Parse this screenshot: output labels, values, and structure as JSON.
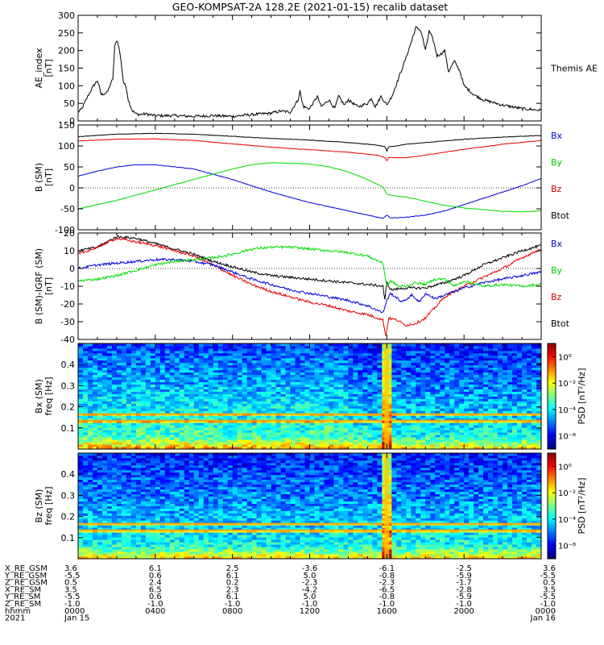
{
  "figure": {
    "title": "GEO-KOMPSAT-2A 128.2E (2021-01-15) recalib dataset"
  },
  "chart_data": [
    {
      "type": "line",
      "panel": "ae",
      "ylabel_lines": [
        "AE_index",
        "[nT]"
      ],
      "ylim": [
        0,
        300
      ],
      "yticks": [
        0,
        50,
        100,
        150,
        200,
        250,
        300
      ],
      "xlim_hours": [
        0,
        24
      ],
      "legend": [
        {
          "label": "Themis AE",
          "color": "#000000"
        }
      ],
      "series": [
        {
          "color": "#000000",
          "x": [
            0,
            0.2,
            0.5,
            0.8,
            1.0,
            1.2,
            1.5,
            1.8,
            1.9,
            2.0,
            2.1,
            2.2,
            2.35,
            2.5,
            2.6,
            2.8,
            3.0,
            3.2,
            3.5,
            4,
            5,
            6,
            7,
            8,
            9,
            9.5,
            10,
            10.5,
            11,
            11.4,
            11.5,
            11.6,
            11.7,
            12,
            12.4,
            12.6,
            13,
            13.3,
            13.5,
            13.8,
            14,
            14.5,
            15,
            15.2,
            15.4,
            15.7,
            16,
            16.3,
            16.7,
            17,
            17.3,
            17.5,
            17.7,
            17.8,
            18.0,
            18.2,
            18.4,
            18.6,
            18.8,
            19,
            19.2,
            19.5,
            19.8,
            20,
            20.5,
            21,
            22,
            23,
            24
          ],
          "y": [
            25,
            35,
            70,
            100,
            115,
            75,
            80,
            120,
            210,
            230,
            215,
            180,
            110,
            95,
            60,
            30,
            20,
            18,
            20,
            15,
            15,
            13,
            15,
            13,
            18,
            20,
            22,
            28,
            25,
            60,
            85,
            55,
            40,
            35,
            70,
            40,
            60,
            35,
            70,
            45,
            60,
            40,
            50,
            65,
            40,
            70,
            45,
            75,
            135,
            180,
            230,
            265,
            260,
            250,
            200,
            255,
            230,
            185,
            190,
            200,
            140,
            170,
            140,
            100,
            75,
            60,
            45,
            35,
            30
          ]
        }
      ]
    },
    {
      "type": "line",
      "panel": "b_sm",
      "ylabel_lines": [
        "B (SM)",
        "[nT]"
      ],
      "ylim": [
        -100,
        150
      ],
      "yticks": [
        -100,
        -50,
        0,
        50,
        100,
        150
      ],
      "xlim_hours": [
        0,
        24
      ],
      "legend": [
        {
          "label": "Bx",
          "color": "#0000cc"
        },
        {
          "label": "By",
          "color": "#00cc00"
        },
        {
          "label": "Bz",
          "color": "#cc0000"
        },
        {
          "label": "Btot",
          "color": "#000000"
        }
      ],
      "series": [
        {
          "name": "Btot",
          "color": "#000000",
          "x": [
            0,
            2,
            4,
            6,
            8,
            10,
            12,
            14,
            15.5,
            15.9,
            16.0,
            16.1,
            16.5,
            17,
            18,
            20,
            22,
            24
          ],
          "y": [
            122,
            128,
            130,
            128,
            123,
            118,
            114,
            108,
            102,
            98,
            88,
            98,
            100,
            104,
            108,
            116,
            121,
            125
          ]
        },
        {
          "name": "Bz",
          "color": "#ee0000",
          "x": [
            0,
            2,
            4,
            6,
            8,
            10,
            12,
            14,
            15.5,
            15.9,
            16.0,
            16.1,
            16.5,
            17,
            18,
            20,
            22,
            24
          ],
          "y": [
            112,
            116,
            117,
            113,
            105,
            97,
            91,
            85,
            78,
            72,
            65,
            73,
            72,
            72,
            78,
            92,
            104,
            113
          ]
        },
        {
          "name": "Bx",
          "color": "#0000dd",
          "x": [
            0,
            1,
            2,
            3,
            4,
            6,
            8,
            10,
            12,
            14,
            15,
            15.8,
            16.0,
            16.2,
            17,
            18,
            19,
            20,
            21,
            22,
            23,
            24
          ],
          "y": [
            28,
            40,
            50,
            55,
            55,
            45,
            20,
            -10,
            -35,
            -55,
            -65,
            -73,
            -65,
            -72,
            -70,
            -65,
            -55,
            -40,
            -25,
            -10,
            5,
            22
          ]
        },
        {
          "name": "By",
          "color": "#00dd00",
          "x": [
            0,
            2,
            4,
            6,
            8,
            9,
            10,
            12,
            13,
            14,
            15,
            15.8,
            16.0,
            16.5,
            17,
            18,
            19,
            20,
            21,
            22,
            23,
            24
          ],
          "y": [
            -50,
            -30,
            -5,
            20,
            45,
            55,
            60,
            57,
            50,
            38,
            20,
            2,
            -15,
            -20,
            -22,
            -32,
            -42,
            -48,
            -52,
            -56,
            -57,
            -55
          ]
        }
      ]
    },
    {
      "type": "line",
      "panel": "b_minus_igrf",
      "ylabel_lines": [
        "B (SM)-IGRF (SM)",
        "[nT]"
      ],
      "ylim": [
        -40,
        20
      ],
      "yticks": [
        -40,
        -30,
        -20,
        -10,
        0,
        10,
        20
      ],
      "xlim_hours": [
        0,
        24
      ],
      "legend": [
        {
          "label": "Bx",
          "color": "#0000cc"
        },
        {
          "label": "By",
          "color": "#00cc00"
        },
        {
          "label": "Bz",
          "color": "#cc0000"
        },
        {
          "label": "Btot",
          "color": "#000000"
        }
      ],
      "series": [
        {
          "name": "Btot",
          "color": "#000000",
          "x": [
            0,
            1,
            2,
            3,
            4,
            5,
            6,
            7,
            8,
            9,
            10,
            11,
            12,
            13,
            14,
            15,
            15.8,
            15.9,
            16.0,
            16.2,
            17,
            18,
            19,
            20,
            21,
            22,
            23,
            24
          ],
          "y": [
            10,
            12,
            18,
            17,
            14,
            11,
            8,
            4,
            1,
            -2,
            -4,
            -5,
            -6,
            -7,
            -8,
            -9,
            -10,
            -18,
            -8,
            -12,
            -11,
            -11,
            -8,
            -4,
            2,
            6,
            10,
            13
          ]
        },
        {
          "name": "Bz",
          "color": "#ee0000",
          "x": [
            0,
            1,
            2,
            3,
            4,
            5,
            6,
            7,
            8,
            9,
            10,
            11,
            12,
            13,
            14,
            15,
            15.8,
            15.95,
            16.1,
            16.5,
            17,
            17.5,
            18,
            18.5,
            19,
            20,
            21,
            22,
            23,
            24
          ],
          "y": [
            8,
            12,
            17,
            15,
            13,
            10,
            7,
            2,
            -4,
            -9,
            -13,
            -16,
            -19,
            -21,
            -24,
            -26,
            -29,
            -38,
            -28,
            -29,
            -32,
            -31,
            -28,
            -22,
            -16,
            -10,
            -5,
            0,
            6,
            11
          ]
        },
        {
          "name": "Bx",
          "color": "#0000dd",
          "x": [
            0,
            1,
            2,
            3,
            4,
            5,
            6,
            7,
            8,
            9,
            10,
            11,
            12,
            13,
            14,
            15,
            15.8,
            16.0,
            16.2,
            16.8,
            17.3,
            17.7,
            18,
            18.5,
            19,
            20,
            21,
            22,
            23,
            24
          ],
          "y": [
            0,
            2,
            3,
            4,
            5,
            5,
            4,
            2,
            -2,
            -6,
            -9,
            -12,
            -14,
            -16,
            -18,
            -21,
            -25,
            -18,
            -14,
            -19,
            -15,
            -19,
            -14,
            -17,
            -15,
            -11,
            -8,
            -6,
            -4,
            -2
          ]
        },
        {
          "name": "By",
          "color": "#00dd00",
          "x": [
            0,
            1,
            2,
            3,
            4,
            5,
            6,
            7,
            8,
            9,
            10,
            11,
            12,
            13,
            14,
            15,
            15.8,
            16.0,
            16.2,
            16.6,
            17,
            17.5,
            18,
            18.5,
            19,
            19.5,
            20,
            21,
            22,
            23,
            24
          ],
          "y": [
            -7,
            -6,
            -4,
            -1,
            2,
            4,
            5,
            6,
            8,
            11,
            12,
            12,
            11,
            10,
            9,
            7,
            3,
            -10,
            -7,
            -10,
            -10,
            -8,
            -9,
            -6,
            -6,
            -10,
            -7,
            -10,
            -9,
            -10,
            -9
          ]
        }
      ]
    },
    {
      "type": "heatmap",
      "panel": "bx_spec",
      "ylabel_lines": [
        "Bx (SM)",
        "freq [Hz]"
      ],
      "ylim": [
        0,
        0.5
      ],
      "yticks": [
        0.1,
        0.2,
        0.3,
        0.4
      ],
      "xlim_hours": [
        0,
        24
      ],
      "colorbar": {
        "label": "PSD [nT²/Hz]",
        "tick_labels": [
          "10⁰",
          "10⁻²",
          "10⁻⁴",
          "10⁻⁶"
        ],
        "tick_exps": [
          0,
          -2,
          -4,
          -6
        ],
        "range_exp": [
          -7,
          1
        ]
      },
      "features": {
        "horizontal_lines_hz": [
          0.165,
          0.135
        ],
        "vertical_band_hours": 16.0
      }
    },
    {
      "type": "heatmap",
      "panel": "bz_spec",
      "ylabel_lines": [
        "Bz (SM)",
        "freq [Hz]"
      ],
      "ylim": [
        0,
        0.5
      ],
      "yticks": [
        0.1,
        0.2,
        0.3,
        0.4
      ],
      "xlim_hours": [
        0,
        24
      ],
      "colorbar": {
        "label": "PSD [nT²/Hz]",
        "tick_labels": [
          "10⁰",
          "10⁻²",
          "10⁻⁴",
          "10⁻⁶"
        ],
        "tick_exps": [
          0,
          -2,
          -4,
          -6
        ],
        "range_exp": [
          -7,
          1
        ]
      },
      "features": {
        "horizontal_lines_hz": [
          0.165,
          0.135
        ],
        "vertical_band_hours": 16.0
      }
    }
  ],
  "ephemeris": {
    "row_labels": [
      "X_RE_GSM",
      "Y_RE_GSM",
      "Z_RE_GSM",
      "X_RE_SM",
      "Y_RE_SM",
      "Z_RE_SM",
      "hhmm",
      "2021"
    ],
    "columns": [
      {
        "hour": 0,
        "values": [
          "3.6",
          "-5.5",
          "0.5",
          "3.5",
          "-5.5",
          "-1.0",
          "0000",
          "Jan 15"
        ]
      },
      {
        "hour": 4,
        "values": [
          "6.1",
          "0.6",
          "2.4",
          "6.5",
          "0.6",
          "-1.0",
          "0400",
          ""
        ]
      },
      {
        "hour": 8,
        "values": [
          "2.5",
          "6.1",
          "0.2",
          "2.3",
          "6.1",
          "-1.0",
          "0800",
          ""
        ]
      },
      {
        "hour": 12,
        "values": [
          "-3.6",
          "5.0",
          "-2.3",
          "-4.2",
          "5.0",
          "-1.0",
          "1200",
          ""
        ]
      },
      {
        "hour": 16,
        "values": [
          "-6.1",
          "-0.8",
          "-2.3",
          "-6.5",
          "-0.8",
          "-1.0",
          "1600",
          ""
        ]
      },
      {
        "hour": 20,
        "values": [
          "-2.5",
          "-5.9",
          "-1.7",
          "-2.8",
          "-5.9",
          "-1.0",
          "2000",
          ""
        ]
      },
      {
        "hour": 24,
        "values": [
          "3.6",
          "-5.5",
          "0.5",
          "3.5",
          "-5.5",
          "-1.0",
          "0000",
          "Jan 16"
        ]
      }
    ]
  }
}
